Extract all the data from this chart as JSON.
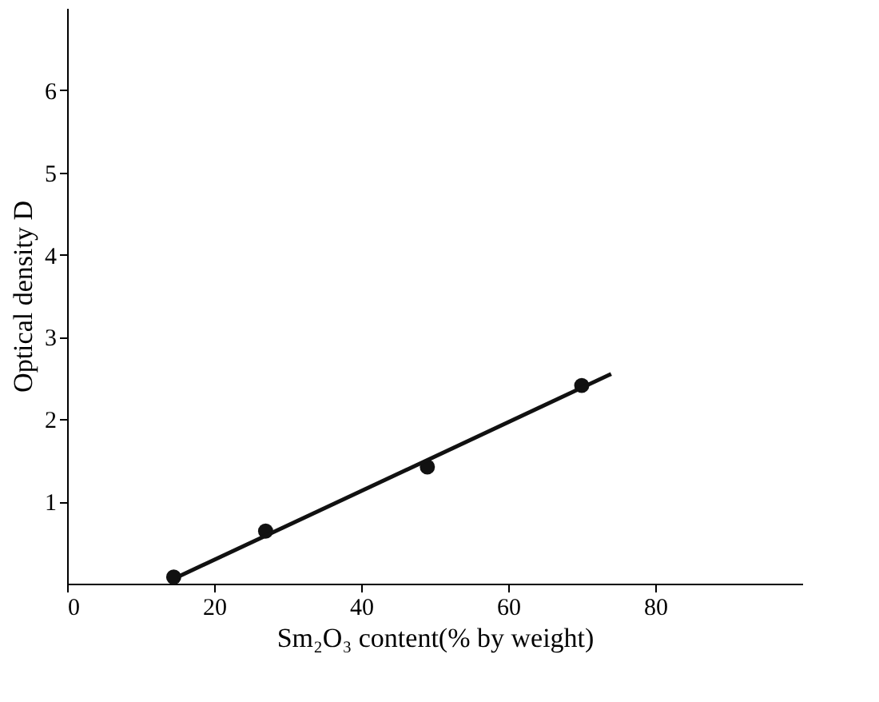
{
  "chart_data": {
    "type": "scatter",
    "xlabel": "Sm₂O₃ content(% by weight)",
    "ylabel": "Optical density D",
    "xlim": [
      0,
      100
    ],
    "xticks": [
      0,
      20,
      40,
      60,
      80
    ],
    "ylim": [
      0,
      7
    ],
    "yticks": [
      1,
      2,
      3,
      4,
      5,
      6
    ],
    "grid": false,
    "series": [
      {
        "color": "#111111",
        "marker": "circle",
        "x": [
          14.5,
          27,
          49,
          70
        ],
        "values": [
          0.08,
          0.64,
          1.42,
          2.41
        ]
      },
      {
        "type": "line",
        "color": "#111111",
        "marker": "none",
        "line_style": "solid",
        "x": [
          15,
          74
        ],
        "values": [
          0.08,
          2.55
        ]
      }
    ]
  }
}
